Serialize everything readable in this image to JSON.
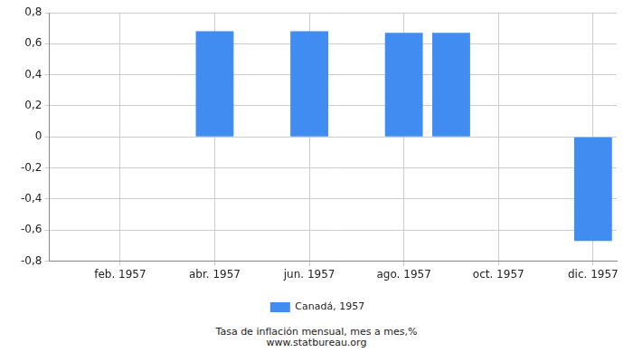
{
  "chart_data": {
    "type": "bar",
    "categories": [
      null,
      "feb. 1957",
      null,
      "abr. 1957",
      null,
      "jun. 1957",
      null,
      "ago. 1957",
      null,
      "oct. 1957",
      null,
      "dic. 1957"
    ],
    "series": [
      {
        "name": "Canadá, 1957",
        "color": "#418cf0",
        "values": [
          0,
          0,
          0,
          0.68,
          0,
          0.68,
          0,
          0.67,
          0.67,
          0,
          0,
          -0.67
        ]
      }
    ],
    "ylim": [
      -0.8,
      0.8
    ],
    "yticks": [
      {
        "value": -0.8,
        "label": "-0,8"
      },
      {
        "value": -0.6,
        "label": "-0,6"
      },
      {
        "value": -0.4,
        "label": "-0,4"
      },
      {
        "value": -0.2,
        "label": "-0,2"
      },
      0,
      {
        "value": 0.2,
        "label": "0,2"
      },
      {
        "value": 0.4,
        "label": "0,4"
      },
      {
        "value": 0.6,
        "label": "0,6"
      },
      {
        "value": 0.8,
        "label": "0,8"
      }
    ],
    "grid": true,
    "legend": "bottom",
    "subtitle": "Tasa de inflación mensual, mes a mes,%",
    "annotations": [
      "www.statbureau.org"
    ]
  }
}
